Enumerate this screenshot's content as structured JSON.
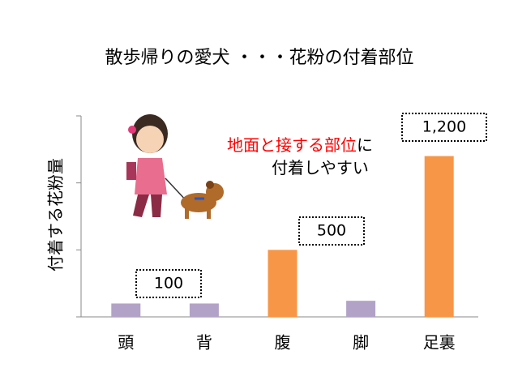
{
  "chart_data": {
    "type": "bar",
    "title": "散歩帰りの愛犬 ・・・花粉の付着部位",
    "y_label": "付着する花粉量",
    "categories": [
      "頭",
      "背",
      "腹",
      "脚",
      "足裏"
    ],
    "values": [
      100,
      100,
      500,
      120,
      1200
    ],
    "value_labels": [
      "100",
      null,
      "500",
      null,
      "1,200"
    ],
    "colors": [
      "#b3a2c7",
      "#b3a2c7",
      "#f79646",
      "#b3a2c7",
      "#f79646"
    ],
    "ylim": [
      0,
      1500
    ],
    "yticks": [
      0,
      500,
      1000,
      1500
    ],
    "grid": false,
    "annotation": [
      {
        "text": "地面と接する部位",
        "color": "#ff0000"
      },
      {
        "text": "に",
        "color": "#000000"
      },
      {
        "text": "付着しやすい",
        "color": "#000000"
      }
    ]
  }
}
